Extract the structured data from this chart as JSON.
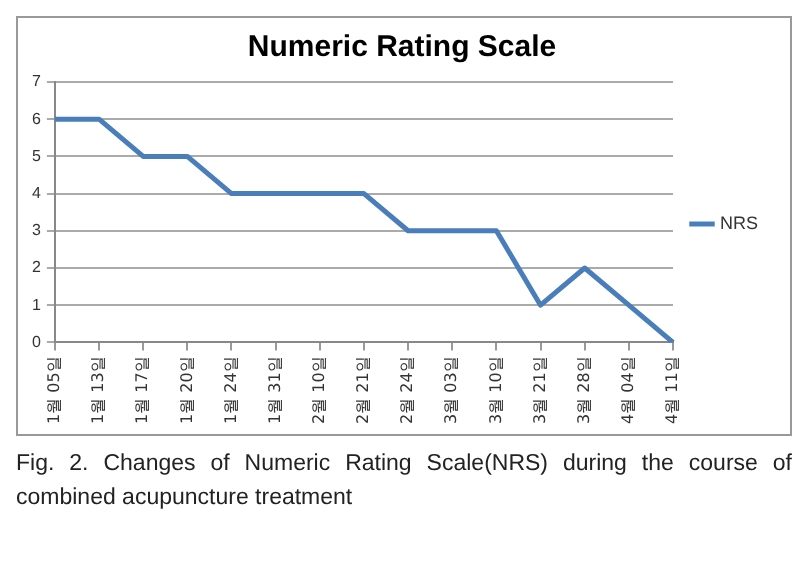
{
  "chart_data": {
    "type": "line",
    "title": "Numeric Rating Scale",
    "categories": [
      "1월 05일",
      "1월 13일",
      "1월 17일",
      "1월 20일",
      "1월 24일",
      "1월 31일",
      "2월 10일",
      "2월 21일",
      "2월 24일",
      "3월 03일",
      "3월 10일",
      "3월 21일",
      "3월 28일",
      "4월 04일",
      "4월 11일"
    ],
    "series": [
      {
        "name": "NRS",
        "color": "#4a7ebb",
        "values": [
          6,
          6,
          5,
          5,
          4,
          4,
          4,
          4,
          3,
          3,
          3,
          1,
          2,
          1,
          0
        ]
      }
    ],
    "ylim": [
      0,
      7
    ],
    "yticks": [
      0,
      1,
      2,
      3,
      4,
      5,
      6,
      7
    ],
    "grid": "y",
    "legend": "right",
    "marker": "none",
    "annotations": [
      "Fig. 2. Changes of Numeric Rating Scale(NRS) during the course of combined acupuncture treatment"
    ]
  }
}
